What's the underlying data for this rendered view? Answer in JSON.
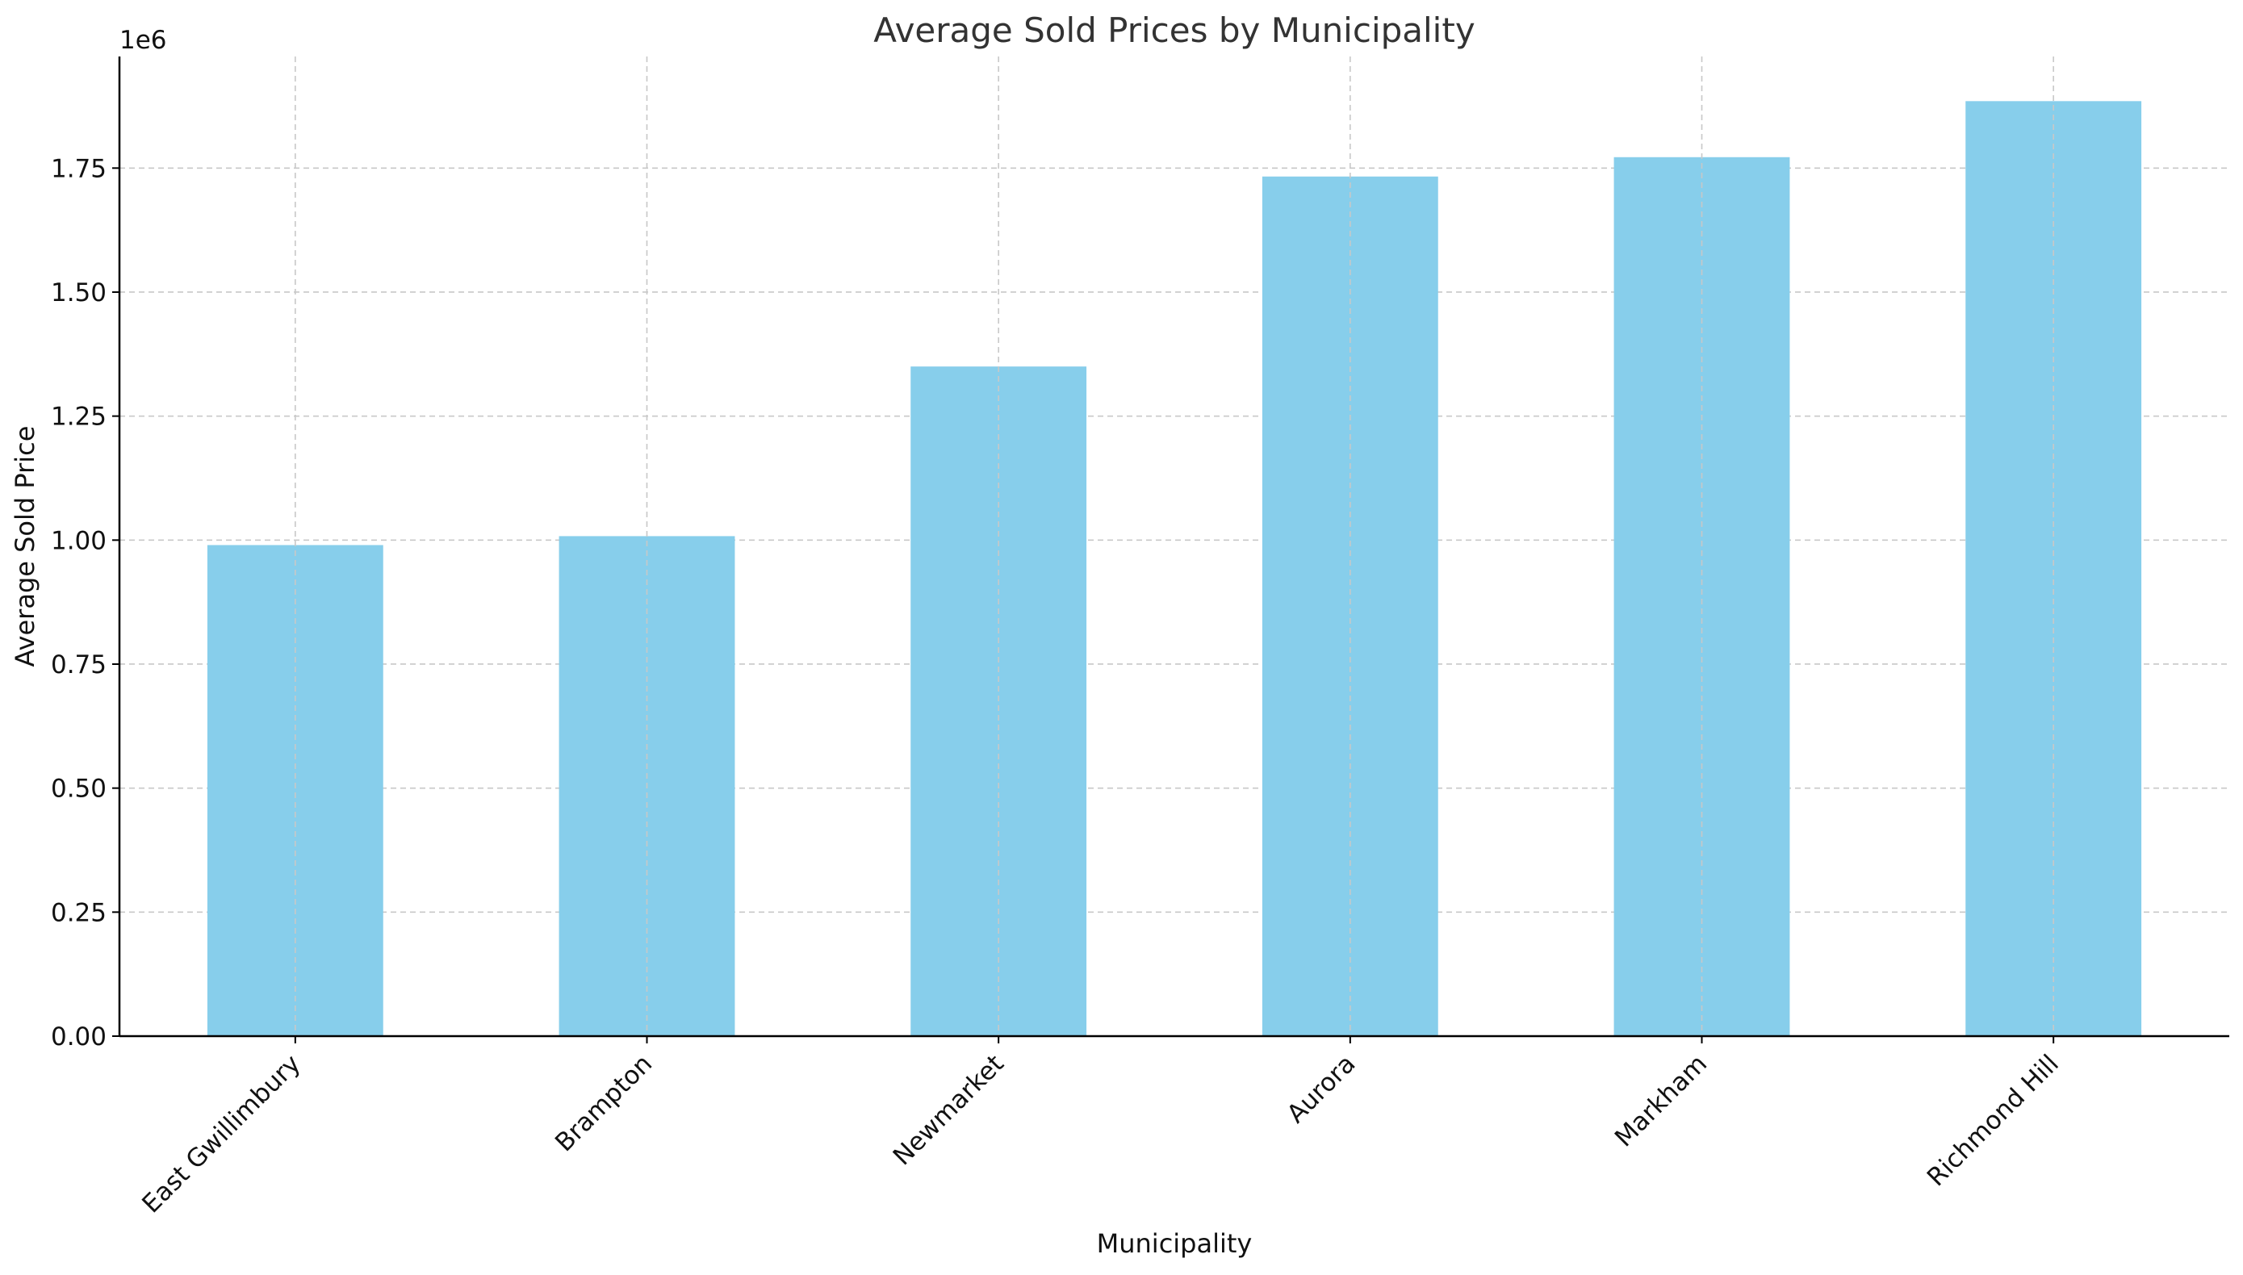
{
  "chart_data": {
    "type": "bar",
    "title": "Average Sold Prices by Municipality",
    "xlabel": "Municipality",
    "ylabel": "Average Sold Price",
    "y_offset_label": "1e6",
    "categories": [
      "East Gwillimbury",
      "Brampton",
      "Newmarket",
      "Aurora",
      "Markham",
      "Richmond Hill"
    ],
    "values": [
      990000,
      1008000,
      1350000,
      1733000,
      1772000,
      1885000
    ],
    "ylim": [
      0,
      1975000
    ],
    "y_ticks": [
      0,
      250000,
      500000,
      750000,
      1000000,
      1250000,
      1500000,
      1750000
    ],
    "y_tick_labels": [
      "0.00",
      "0.25",
      "0.50",
      "0.75",
      "1.00",
      "1.25",
      "1.50",
      "1.75"
    ],
    "grid": true,
    "bar_color": "#87CEEB",
    "grid_color": "#c8c8c8"
  }
}
